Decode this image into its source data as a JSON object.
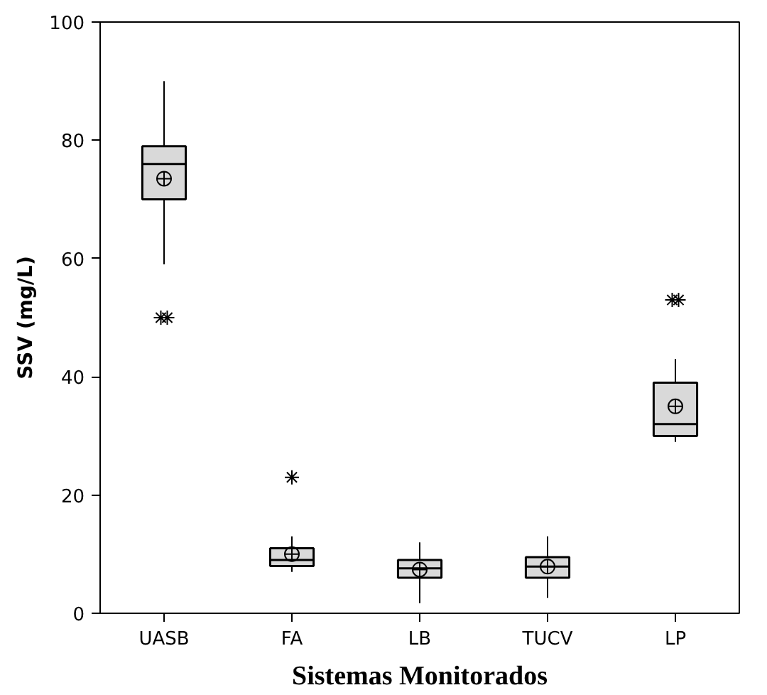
{
  "chart_data": {
    "type": "box",
    "xlabel": "Sistemas Monitorados",
    "ylabel": "SSV (mg/L)",
    "categories": [
      "UASB",
      "FA",
      "LB",
      "TUCV",
      "LP"
    ],
    "boxes": [
      {
        "low": 59,
        "q1": 70,
        "median": 76,
        "q3": 79,
        "high": 90,
        "mean": 73.5,
        "outliers": [
          50,
          50
        ]
      },
      {
        "low": 7,
        "q1": 8,
        "median": 9,
        "q3": 11,
        "high": 13,
        "mean": 10,
        "outliers": [
          23
        ]
      },
      {
        "low": 1.7,
        "q1": 6,
        "median": 7.6,
        "q3": 9,
        "high": 12,
        "mean": 7.4
      },
      {
        "low": 2.6,
        "q1": 6,
        "median": 7.9,
        "q3": 9.5,
        "high": 13,
        "mean": 7.9
      },
      {
        "low": 29,
        "q1": 30,
        "median": 32,
        "q3": 39,
        "high": 43,
        "mean": 35,
        "outliers": [
          53,
          53
        ]
      }
    ],
    "color": "#d9d9d9",
    "ylim": [
      0,
      100
    ],
    "yticks": [
      0,
      20,
      40,
      60,
      80,
      100
    ],
    "grid": false
  }
}
